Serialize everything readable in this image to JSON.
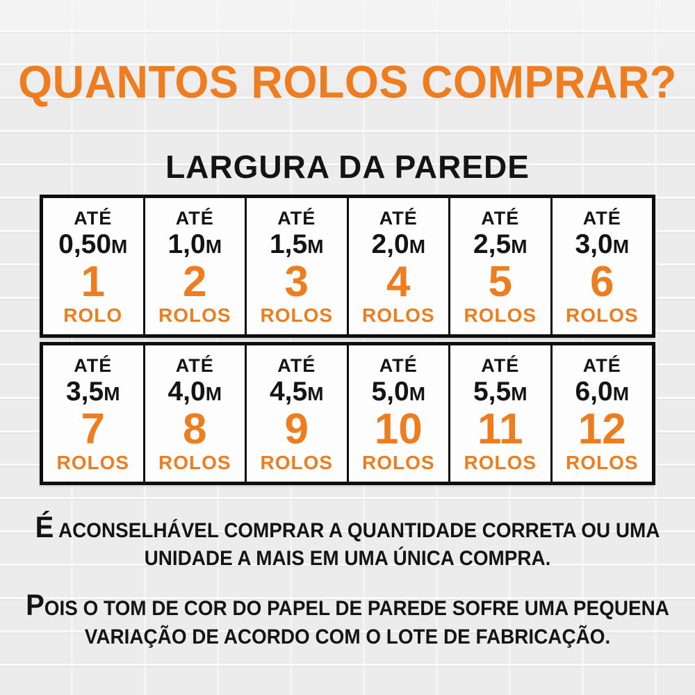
{
  "title": "QUANTOS ROLOS COMPRAR?",
  "subtitle": "LARGURA DA PAREDE",
  "colors": {
    "accent": "#EE7D1F",
    "ink": "#141414",
    "border": "#0D0D0D",
    "page_bg": "#EDECEC",
    "cell_bg": "#FDFDFD"
  },
  "table": {
    "rows": [
      {
        "cells": [
          {
            "prefix": "ATÉ",
            "value": "0,50",
            "unit": "M",
            "count": "1",
            "label": "ROLO"
          },
          {
            "prefix": "ATÉ",
            "value": "1,0",
            "unit": "M",
            "count": "2",
            "label": "ROLOS"
          },
          {
            "prefix": "ATÉ",
            "value": "1,5",
            "unit": "M",
            "count": "3",
            "label": "ROLOS"
          },
          {
            "prefix": "ATÉ",
            "value": "2,0",
            "unit": "M",
            "count": "4",
            "label": "ROLOS"
          },
          {
            "prefix": "ATÉ",
            "value": "2,5",
            "unit": "M",
            "count": "5",
            "label": "ROLOS"
          },
          {
            "prefix": "ATÉ",
            "value": "3,0",
            "unit": "M",
            "count": "6",
            "label": "ROLOS"
          }
        ]
      },
      {
        "cells": [
          {
            "prefix": "ATÉ",
            "value": "3,5",
            "unit": "M",
            "count": "7",
            "label": "ROLOS"
          },
          {
            "prefix": "ATÉ",
            "value": "4,0",
            "unit": "M",
            "count": "8",
            "label": "ROLOS"
          },
          {
            "prefix": "ATÉ",
            "value": "4,5",
            "unit": "M",
            "count": "9",
            "label": "ROLOS"
          },
          {
            "prefix": "ATÉ",
            "value": "5,0",
            "unit": "M",
            "count": "10",
            "label": "ROLOS"
          },
          {
            "prefix": "ATÉ",
            "value": "5,5",
            "unit": "M",
            "count": "11",
            "label": "ROLOS"
          },
          {
            "prefix": "ATÉ",
            "value": "6,0",
            "unit": "M",
            "count": "12",
            "label": "ROLOS"
          }
        ]
      }
    ]
  },
  "notes": [
    {
      "lead": "É",
      "line1_rest": " ACONSELHÁVEL COMPRAR A QUANTIDADE CORRETA OU UMA",
      "line2": "UNIDADE A MAIS EM UMA ÚNICA COMPRA."
    },
    {
      "lead": "P",
      "line1_rest": "OIS O TOM DE COR DO PAPEL DE PAREDE SOFRE UMA PEQUENA",
      "line2": "VARIAÇÃO DE ACORDO COM O LOTE DE FABRICAÇÃO."
    }
  ]
}
